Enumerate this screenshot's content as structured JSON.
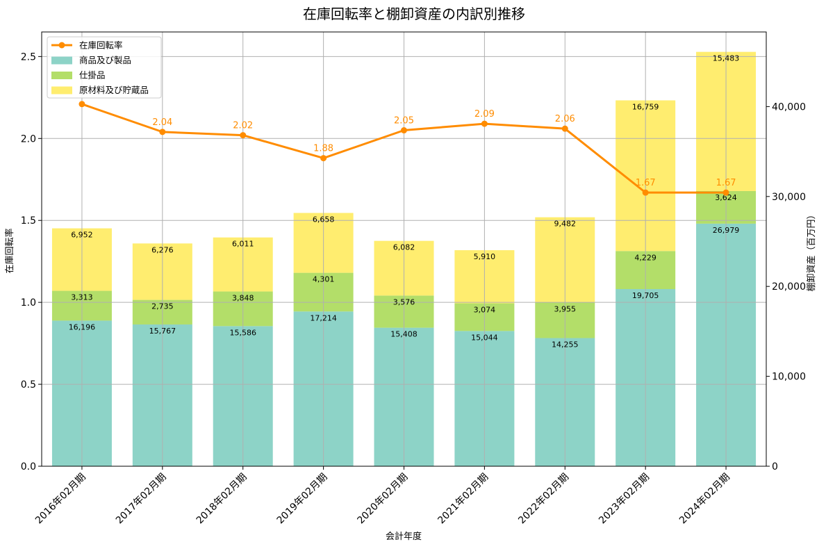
{
  "chart_data": {
    "type": "bar",
    "title": "在庫回転率と棚卸資産の内訳別推移",
    "xlabel": "会計年度",
    "ylabel_left": "在庫回転率",
    "ylabel_right": "棚卸資産（百万円）",
    "categories": [
      "2016年02月期",
      "2017年02月期",
      "2018年02月期",
      "2019年02月期",
      "2020年02月期",
      "2021年02月期",
      "2022年02月期",
      "2023年02月期",
      "2024年02月期"
    ],
    "y_left_range": [
      0,
      2.65
    ],
    "y_left_ticks": [
      "0.0",
      "0.5",
      "1.0",
      "1.5",
      "2.0",
      "2.5"
    ],
    "y_right_range": [
      0,
      48300
    ],
    "y_right_ticks": [
      "0",
      "10,000",
      "20,000",
      "30,000",
      "40,000"
    ],
    "grid": true,
    "legend_position": "top-left",
    "stacked_series": [
      {
        "name": "商品及び製品",
        "color": "#8dd3c7",
        "values": [
          16196,
          15767,
          15586,
          17214,
          15408,
          15044,
          14255,
          19705,
          26979
        ],
        "labels": [
          "16,196",
          "15,767",
          "15,586",
          "17,214",
          "15,408",
          "15,044",
          "14,255",
          "19,705",
          "26,979"
        ]
      },
      {
        "name": "仕掛品",
        "color": "#b3de69",
        "values": [
          3313,
          2735,
          3848,
          4301,
          3576,
          3074,
          3955,
          4229,
          3624
        ],
        "labels": [
          "3,313",
          "2,735",
          "3,848",
          "4,301",
          "3,576",
          "3,074",
          "3,955",
          "4,229",
          "3,624"
        ]
      },
      {
        "name": "原材料及び貯蔵品",
        "color": "#ffed6f",
        "values": [
          6952,
          6276,
          6011,
          6658,
          6082,
          5910,
          9482,
          16759,
          15483
        ],
        "labels": [
          "6,952",
          "6,276",
          "6,011",
          "6,658",
          "6,082",
          "5,910",
          "9,482",
          "16,759",
          "15,483"
        ]
      }
    ],
    "line_series": {
      "name": "在庫回転率",
      "color": "#ff8c00",
      "values": [
        2.21,
        2.04,
        2.02,
        1.88,
        2.05,
        2.09,
        2.06,
        1.67,
        1.67
      ],
      "labels": [
        "",
        "2.04",
        "2.02",
        "1.88",
        "2.05",
        "2.09",
        "2.06",
        "1.67",
        "1.67"
      ]
    }
  }
}
